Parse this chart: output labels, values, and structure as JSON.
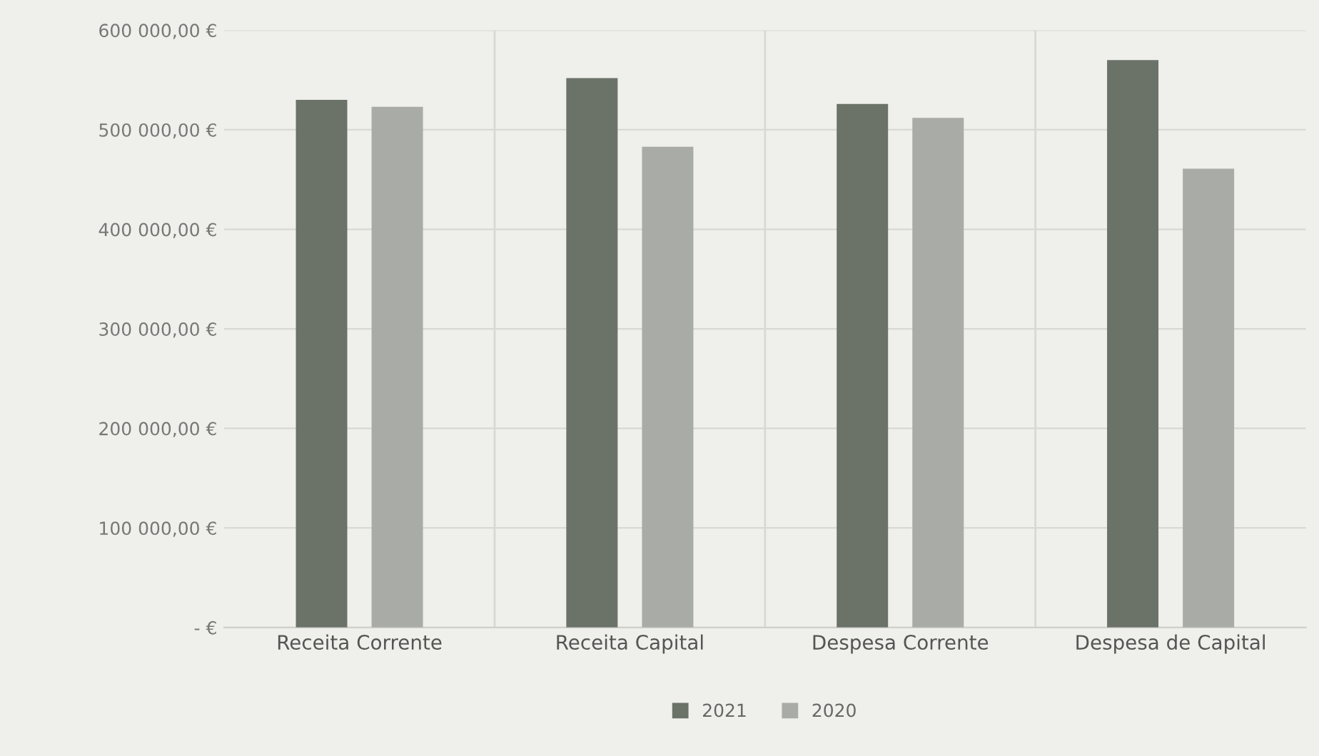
{
  "chart_data": {
    "type": "bar",
    "categories": [
      "Receita Corrente",
      "Receita Capital",
      "Despesa Corrente",
      "Despesa de Capital"
    ],
    "series": [
      {
        "name": "2021",
        "color": "#6b7268",
        "values": [
          530000,
          552000,
          526000,
          570000
        ]
      },
      {
        "name": "2020",
        "color": "#a9aba6",
        "values": [
          523000,
          483000,
          512000,
          461000
        ]
      }
    ],
    "ylim": [
      0,
      600000
    ],
    "yticks": [
      {
        "value": 0,
        "label": "- €"
      },
      {
        "value": 100000,
        "label": "100 000,00 €"
      },
      {
        "value": 200000,
        "label": "200 000,00 €"
      },
      {
        "value": 300000,
        "label": "300 000,00 €"
      },
      {
        "value": 400000,
        "label": "400 000,00 €"
      },
      {
        "value": 500000,
        "label": "500 000,00 €"
      },
      {
        "value": 600000,
        "label": "600 000,00 €"
      }
    ],
    "grid": true,
    "legend": "bottom"
  }
}
